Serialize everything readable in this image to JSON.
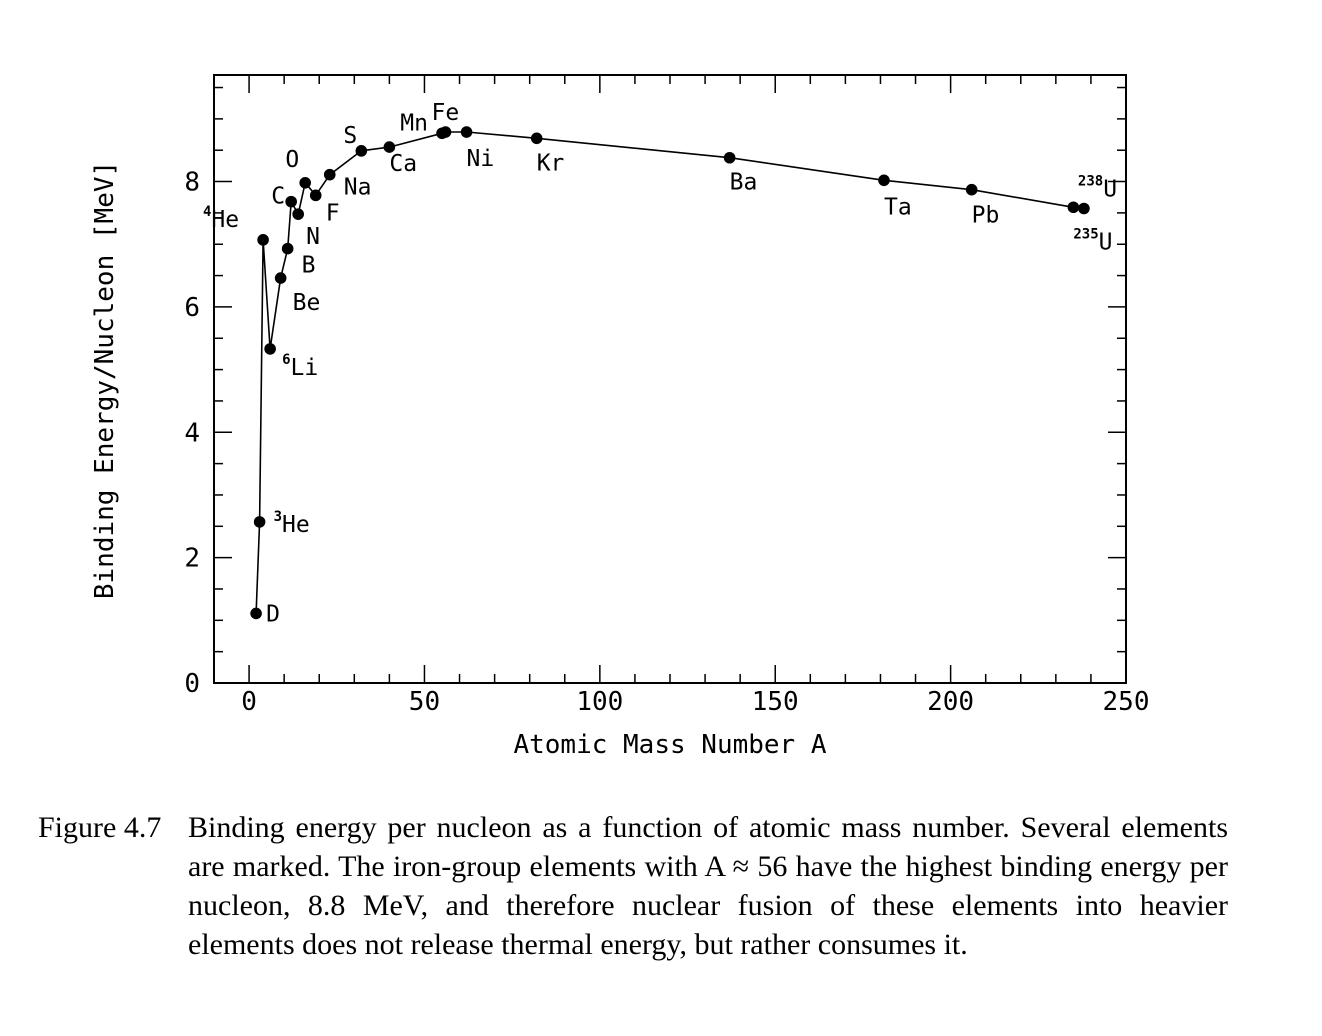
{
  "chart_data": {
    "type": "line",
    "title": "",
    "xlabel": "Atomic Mass Number A",
    "ylabel": "Binding Energy/Nucleon [MeV]",
    "xlim": [
      -10,
      250
    ],
    "ylim": [
      0,
      9.7
    ],
    "xticks": [
      0,
      50,
      100,
      150,
      200,
      250
    ],
    "yticks": [
      0,
      2,
      4,
      6,
      8
    ],
    "xticks_minor_step": 10,
    "yticks_minor_step": 0.5,
    "grid": false,
    "legend": "none",
    "series": [
      {
        "marker": "filled-circle",
        "line": "solid",
        "points": [
          {
            "label": "D",
            "sup": "",
            "x": 2,
            "y": 1.11
          },
          {
            "label": "He",
            "sup": "3",
            "x": 3,
            "y": 2.57
          },
          {
            "label": "He",
            "sup": "4",
            "x": 4,
            "y": 7.07
          },
          {
            "label": "Li",
            "sup": "6",
            "x": 6,
            "y": 5.33
          },
          {
            "label": "Be",
            "sup": "",
            "x": 9,
            "y": 6.46
          },
          {
            "label": "B",
            "sup": "",
            "x": 11,
            "y": 6.93
          },
          {
            "label": "C",
            "sup": "",
            "x": 12,
            "y": 7.68
          },
          {
            "label": "N",
            "sup": "",
            "x": 14,
            "y": 7.48
          },
          {
            "label": "O",
            "sup": "",
            "x": 16,
            "y": 7.98
          },
          {
            "label": "F",
            "sup": "",
            "x": 19,
            "y": 7.78
          },
          {
            "label": "Na",
            "sup": "",
            "x": 23,
            "y": 8.11
          },
          {
            "label": "S",
            "sup": "",
            "x": 32,
            "y": 8.49
          },
          {
            "label": "Ca",
            "sup": "",
            "x": 40,
            "y": 8.55
          },
          {
            "label": "Mn",
            "sup": "",
            "x": 55,
            "y": 8.77
          },
          {
            "label": "Fe",
            "sup": "",
            "x": 56,
            "y": 8.79
          },
          {
            "label": "Ni",
            "sup": "",
            "x": 62,
            "y": 8.79
          },
          {
            "label": "Kr",
            "sup": "",
            "x": 82,
            "y": 8.69
          },
          {
            "label": "Ba",
            "sup": "",
            "x": 137,
            "y": 8.38
          },
          {
            "label": "Ta",
            "sup": "",
            "x": 181,
            "y": 8.02
          },
          {
            "label": "Pb",
            "sup": "",
            "x": 206,
            "y": 7.87
          },
          {
            "label": "U",
            "sup": "235",
            "x": 235,
            "y": 7.59
          },
          {
            "label": "U",
            "sup": "238",
            "x": 238,
            "y": 7.57
          }
        ]
      }
    ]
  },
  "caption": {
    "figure_number": "Figure 4.7",
    "text": "Binding energy per nucleon as a function of atomic mass number. Several elements are marked. The iron-group elements with A ≈ 56 have the highest binding energy per nucleon, 8.8 MeV, and therefore nuclear fusion of these elements into heavier elements does not release thermal energy, but rather consumes it."
  }
}
